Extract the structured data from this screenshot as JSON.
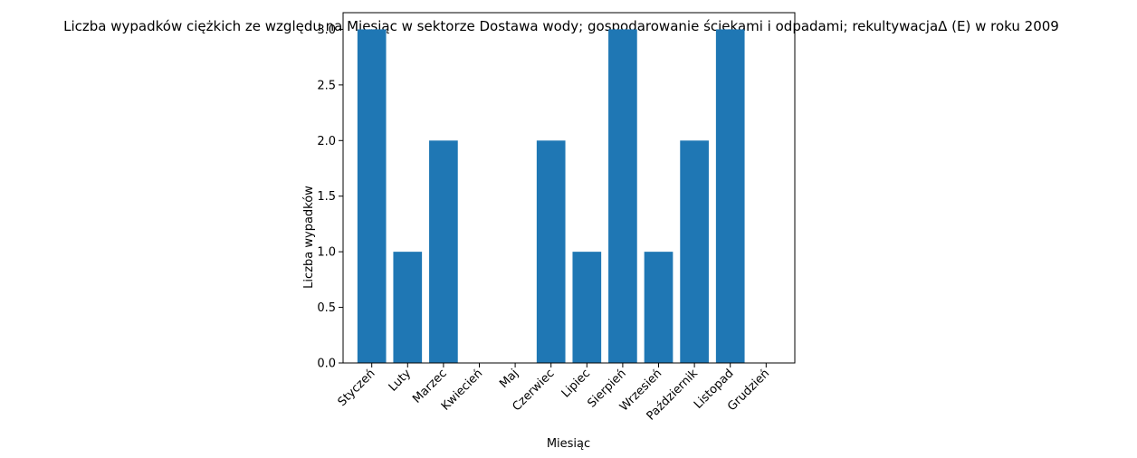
{
  "chart_data": {
    "type": "bar",
    "title": "Liczba wypadków ciężkich ze względu na Miesiąc w sektorze Dostawa wody; gospodarowanie ściekami i odpadami;  rekultywacjaΔ  (E) w roku 2009",
    "xlabel": "Miesiąc",
    "ylabel": "Liczba wypadków",
    "categories": [
      "Styczeń",
      "Luty",
      "Marzec",
      "Kwiecień",
      "Maj",
      "Czerwiec",
      "Lipiec",
      "Sierpień",
      "Wrzesień",
      "Październik",
      "Listopad",
      "Grudzień"
    ],
    "values": [
      3,
      1,
      2,
      0,
      0,
      2,
      1,
      3,
      1,
      2,
      3,
      0
    ],
    "ylim": [
      0,
      3.15
    ],
    "yticks": [
      "0.0",
      "0.5",
      "1.0",
      "1.5",
      "2.0",
      "2.5",
      "3.0"
    ],
    "bar_color": "#1f77b4",
    "grid": false,
    "legend": "none"
  }
}
